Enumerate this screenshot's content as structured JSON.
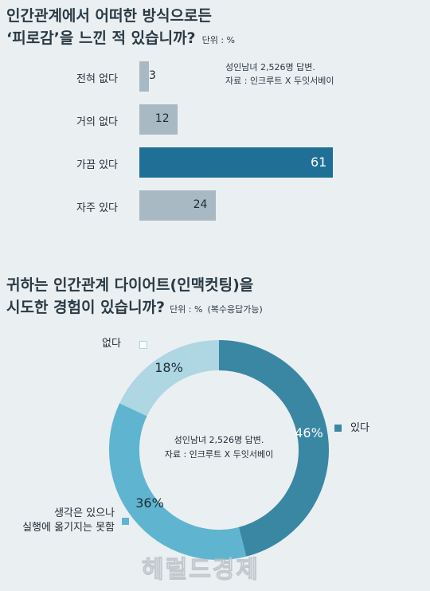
{
  "chart_data": [
    {
      "type": "bar",
      "title_lines": [
        "인간관계에서 어떠한 방식으로든",
        "‘피로감’을 느낀 적 있습니까?"
      ],
      "unit": "단위 : %",
      "source_lines": [
        "성인남녀 2,526명 답변.",
        "자료 : 인크루트 X 두잇서베이"
      ],
      "categories": [
        "전혀 없다",
        "거의 없다",
        "가끔 있다",
        "자주 있다"
      ],
      "values": [
        3,
        12,
        61,
        24
      ],
      "xlim": [
        0,
        61
      ],
      "colors": [
        "#a8b9c4",
        "#a8b9c4",
        "#1f6f96",
        "#a8b9c4"
      ],
      "highlight_label_color": "#ffffff"
    },
    {
      "type": "pie",
      "style": "donut",
      "title_lines": [
        "귀하는 인간관계 다이어트(인맥컷팅)을",
        "시도한 경험이 있습니까?"
      ],
      "unit": "단위 : %",
      "note": "(복수응답가능)",
      "center_lines": [
        "성인남녀 2,526명 답변.",
        "자료 : 인크루트 X 두잇서베이"
      ],
      "slices": [
        {
          "label": "있다",
          "value": 46,
          "value_label": "46%",
          "color": "#3a87a3"
        },
        {
          "label_lines": [
            "생각은 있으나",
            "실행에 옮기지는 못함"
          ],
          "value": 36,
          "value_label": "36%",
          "color": "#5fb5cf"
        },
        {
          "label": "없다",
          "value": 18,
          "value_label": "18%",
          "color": "#aed6e3"
        }
      ]
    }
  ],
  "watermark": "헤럴드경제"
}
